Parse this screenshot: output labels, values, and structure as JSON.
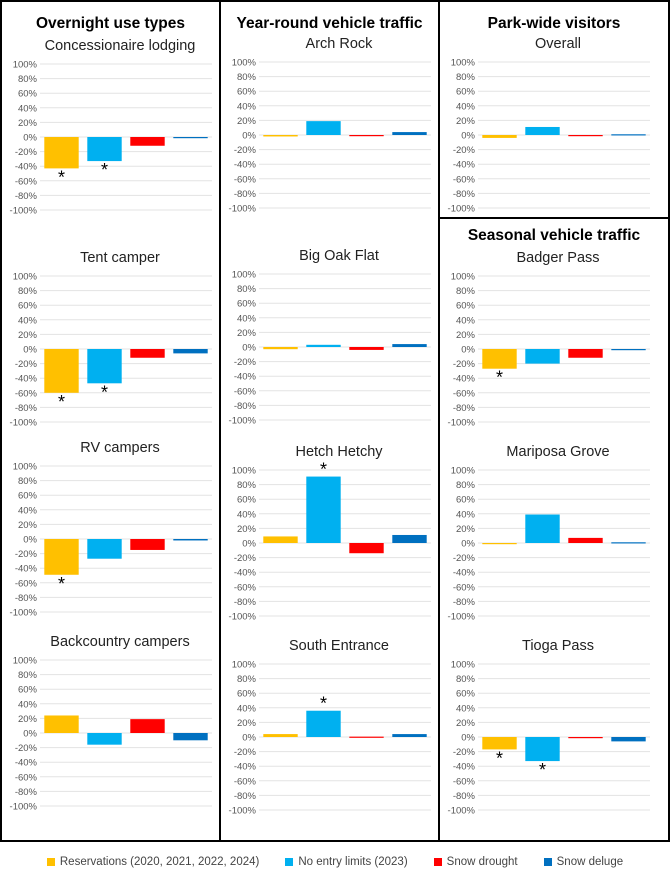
{
  "groups": {
    "overnight": "Overnight use types",
    "yearround": "Year-round vehicle traffic",
    "parkwide": "Park-wide visitors",
    "seasonal": "Seasonal vehicle traffic"
  },
  "legend": [
    {
      "label": "Reservations (2020, 2021, 2022, 2024)",
      "color": "#FFC000"
    },
    {
      "label": "No entry limits (2023)",
      "color": "#00B0F0"
    },
    {
      "label": "Snow drought",
      "color": "#FF0000"
    },
    {
      "label": "Snow deluge",
      "color": "#0070C0"
    }
  ],
  "chart_data": {
    "type": "bar",
    "ylim": [
      -100,
      100
    ],
    "yticks": [
      "100%",
      "80%",
      "60%",
      "40%",
      "20%",
      "0%",
      "-20%",
      "-40%",
      "-60%",
      "-80%",
      "-100%"
    ],
    "grid": true,
    "significance_marker": "*",
    "series": [
      "Reservations (2020, 2021, 2022, 2024)",
      "No entry limits (2023)",
      "Snow drought",
      "Snow deluge"
    ],
    "panels": [
      {
        "group": "overnight",
        "title": "Concessionaire lodging",
        "values": [
          -43,
          -33,
          -12,
          -1
        ],
        "significant": [
          true,
          true,
          false,
          false
        ]
      },
      {
        "group": "overnight",
        "title": "Tent camper",
        "values": [
          -60,
          -47,
          -12,
          -6
        ],
        "significant": [
          true,
          true,
          false,
          false
        ]
      },
      {
        "group": "overnight",
        "title": "RV campers",
        "values": [
          -49,
          -27,
          -15,
          -2
        ],
        "significant": [
          true,
          false,
          false,
          false
        ]
      },
      {
        "group": "overnight",
        "title": "Backcountry campers",
        "values": [
          24,
          -16,
          19,
          -10
        ],
        "significant": [
          false,
          false,
          false,
          false
        ]
      },
      {
        "group": "yearround",
        "title": "Arch Rock",
        "values": [
          -2,
          19,
          -1,
          4
        ],
        "significant": [
          false,
          false,
          false,
          false
        ]
      },
      {
        "group": "yearround",
        "title": "Big Oak Flat",
        "values": [
          -3,
          3,
          -4,
          4
        ],
        "significant": [
          false,
          false,
          false,
          false
        ]
      },
      {
        "group": "yearround",
        "title": "Hetch Hetchy",
        "values": [
          9,
          91,
          -14,
          11
        ],
        "significant": [
          false,
          true,
          false,
          false
        ]
      },
      {
        "group": "yearround",
        "title": "South Entrance",
        "values": [
          4,
          36,
          0.5,
          4
        ],
        "significant": [
          false,
          true,
          false,
          false
        ]
      },
      {
        "group": "parkwide",
        "title": "Overall",
        "values": [
          -4,
          11,
          -1,
          1
        ],
        "significant": [
          false,
          false,
          false,
          false
        ]
      },
      {
        "group": "seasonal",
        "title": "Badger Pass",
        "values": [
          -27,
          -20,
          -12,
          -1
        ],
        "significant": [
          true,
          false,
          false,
          false
        ]
      },
      {
        "group": "seasonal",
        "title": "Mariposa Grove",
        "values": [
          -1,
          39,
          7,
          1
        ],
        "significant": [
          false,
          false,
          false,
          false
        ]
      },
      {
        "group": "seasonal",
        "title": "Tioga Pass",
        "values": [
          -17,
          -33,
          -1,
          -6
        ],
        "significant": [
          true,
          true,
          false,
          false
        ]
      }
    ]
  }
}
